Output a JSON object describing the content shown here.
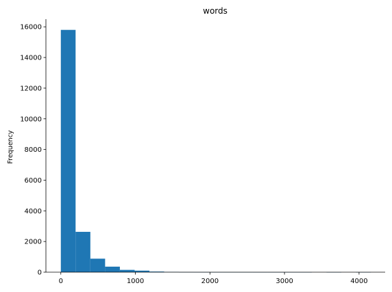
{
  "chart_data": {
    "type": "bar",
    "title": "words",
    "xlabel": "",
    "ylabel": "Frequency",
    "color": "#1f77b4",
    "grid": false,
    "legend": "none",
    "xlim": [
      -200,
      4350
    ],
    "ylim": [
      0,
      16500
    ],
    "xticks": [
      0,
      1000,
      2000,
      3000,
      4000
    ],
    "xtick_labels": [
      "0",
      "1000",
      "2000",
      "3000",
      "4000"
    ],
    "yticks": [
      0,
      2000,
      4000,
      6000,
      8000,
      10000,
      12000,
      14000,
      16000
    ],
    "ytick_labels": [
      "0",
      "2000",
      "4000",
      "6000",
      "8000",
      "10000",
      "12000",
      "14000",
      "16000"
    ],
    "bins": [
      {
        "x0": 0,
        "x1": 198,
        "count": 15800
      },
      {
        "x0": 198,
        "x1": 396,
        "count": 2630
      },
      {
        "x0": 396,
        "x1": 594,
        "count": 880
      },
      {
        "x0": 594,
        "x1": 792,
        "count": 360
      },
      {
        "x0": 792,
        "x1": 990,
        "count": 150
      },
      {
        "x0": 990,
        "x1": 1188,
        "count": 100
      },
      {
        "x0": 1188,
        "x1": 1386,
        "count": 40
      },
      {
        "x0": 1386,
        "x1": 1584,
        "count": 15
      },
      {
        "x0": 1584,
        "x1": 1782,
        "count": 6
      },
      {
        "x0": 1782,
        "x1": 1980,
        "count": 4
      },
      {
        "x0": 1980,
        "x1": 2178,
        "count": 3
      },
      {
        "x0": 2178,
        "x1": 2376,
        "count": 2
      },
      {
        "x0": 2376,
        "x1": 2574,
        "count": 2
      },
      {
        "x0": 2574,
        "x1": 2772,
        "count": 1
      },
      {
        "x0": 2772,
        "x1": 2970,
        "count": 1
      },
      {
        "x0": 2970,
        "x1": 3168,
        "count": 1
      },
      {
        "x0": 3168,
        "x1": 3366,
        "count": 1
      },
      {
        "x0": 3366,
        "x1": 3564,
        "count": 0
      },
      {
        "x0": 3564,
        "x1": 3762,
        "count": 1
      },
      {
        "x0": 3762,
        "x1": 3960,
        "count": 0
      },
      {
        "x0": 3960,
        "x1": 4158,
        "count": 1
      }
    ]
  }
}
